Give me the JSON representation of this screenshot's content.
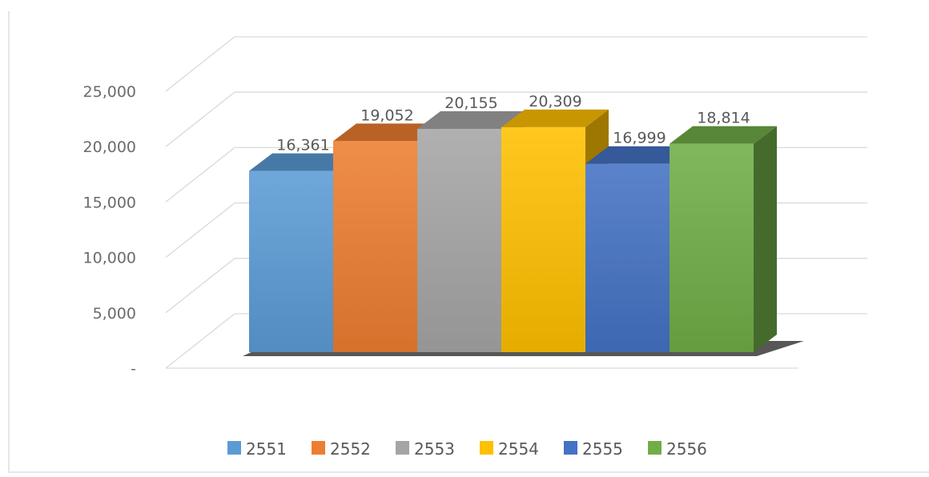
{
  "chart_data": {
    "type": "bar",
    "style": "3d-clustered-column",
    "categories": [
      "2551",
      "2552",
      "2553",
      "2554",
      "2555",
      "2556"
    ],
    "values": [
      16361,
      19052,
      20155,
      20309,
      16999,
      18814
    ],
    "value_labels": [
      "16,361",
      "19,052",
      "20,155",
      "20,309",
      "16,999",
      "18,814"
    ],
    "colors": [
      "#5b9bd5",
      "#ed7d31",
      "#a5a5a5",
      "#ffc000",
      "#4472c4",
      "#70ad47"
    ],
    "ylim": [
      0,
      25000
    ],
    "yticks": [
      0,
      5000,
      10000,
      15000,
      20000,
      25000
    ],
    "ytick_labels": [
      "-",
      "5,000",
      "10,000",
      "15,000",
      "20,000",
      "25,000"
    ],
    "grid": true,
    "legend": {
      "position": "bottom",
      "entries": [
        "2551",
        "2552",
        "2553",
        "2554",
        "2555",
        "2556"
      ]
    },
    "title": "",
    "xlabel": "",
    "ylabel": ""
  }
}
